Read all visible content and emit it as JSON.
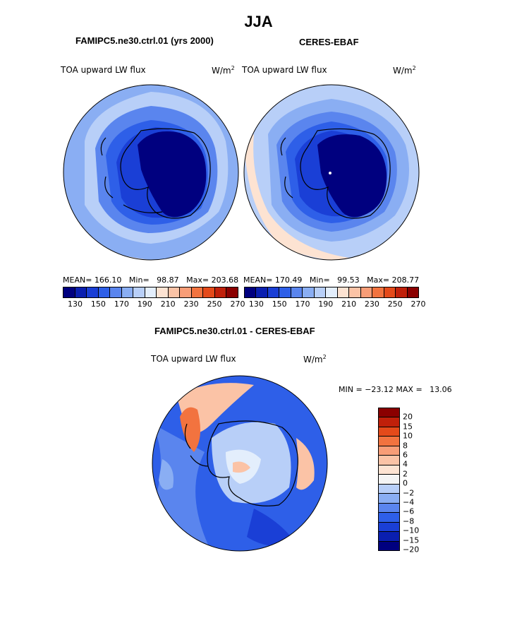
{
  "page_title": "JJA",
  "panels": {
    "model": {
      "title": "FAMIPC5.ne30.ctrl.01 (yrs 2000)",
      "variable": "TOA upward LW flux",
      "units_base": "W/m",
      "units_exp": "2",
      "mean_label": "MEAN=",
      "mean": "166.10",
      "min_label": "Min=",
      "min": "98.87",
      "max_label": "Max=",
      "max": "203.68"
    },
    "obs": {
      "title": "CERES-EBAF",
      "variable": "TOA upward LW flux",
      "units_base": "W/m",
      "units_exp": "2",
      "mean_label": "MEAN=",
      "mean": "170.49",
      "min_label": "Min=",
      "min": "99.53",
      "max_label": "Max=",
      "max": "208.77"
    },
    "diff": {
      "title": "FAMIPC5.ne30.ctrl.01 - CERES-EBAF",
      "variable": "TOA upward LW flux",
      "units_base": "W/m",
      "units_exp": "2",
      "min_label": "MIN =",
      "min": "−23.12",
      "max_label": "MAX =",
      "max": "13.06"
    }
  },
  "colorbar_abs": {
    "ticks": [
      "130",
      "150",
      "170",
      "190",
      "210",
      "230",
      "250",
      "270"
    ],
    "colors": [
      "#00007f",
      "#0a1fb0",
      "#1a3fd6",
      "#2e5fe8",
      "#5a85ee",
      "#8aaef3",
      "#b8cff8",
      "#e3eefc",
      "#fde3d2",
      "#fbc3a6",
      "#f89d77",
      "#f2733f",
      "#e44a1a",
      "#c0200a",
      "#8a0000"
    ]
  },
  "colorbar_diff": {
    "ticks": [
      "20",
      "15",
      "10",
      "8",
      "6",
      "4",
      "2",
      "0",
      "−2",
      "−4",
      "−6",
      "−8",
      "−10",
      "−15",
      "−20"
    ],
    "colors": [
      "#8a0000",
      "#c0200a",
      "#e44a1a",
      "#f2733f",
      "#f89d77",
      "#fbc3a6",
      "#fde3d2",
      "#f4f4f4",
      "#b8cff8",
      "#8aaef3",
      "#5a85ee",
      "#2e5fe8",
      "#1a3fd6",
      "#0a1fb0",
      "#00007f"
    ]
  }
}
